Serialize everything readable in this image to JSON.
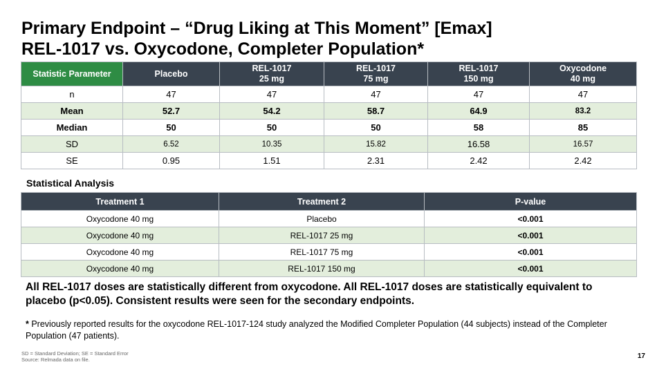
{
  "title": {
    "line1": "Primary Endpoint – “Drug Liking at This Moment” [Emax]",
    "line2": "REL-1017 vs. Oxycodone, Completer Population*"
  },
  "stats_table": {
    "headers": [
      {
        "line1": "Statistic Parameter",
        "line2": ""
      },
      {
        "line1": "Placebo",
        "line2": ""
      },
      {
        "line1": "REL-1017",
        "line2": "25 mg"
      },
      {
        "line1": "REL-1017",
        "line2": "75 mg"
      },
      {
        "line1": "REL-1017",
        "line2": "150 mg"
      },
      {
        "line1": "Oxycodone",
        "line2": "40 mg"
      }
    ],
    "rows": [
      {
        "label": "n",
        "values": [
          "47",
          "47",
          "47",
          "47",
          "47"
        ]
      },
      {
        "label": "Mean",
        "values": [
          "52.7",
          "54.2",
          "58.7",
          "64.9",
          "83.2"
        ]
      },
      {
        "label": "Median",
        "values": [
          "50",
          "50",
          "50",
          "58",
          "85"
        ]
      },
      {
        "label": "SD",
        "values": [
          "6.52",
          "10.35",
          "15.82",
          "16.58",
          "16.57"
        ]
      },
      {
        "label": "SE",
        "values": [
          "0.95",
          "1.51",
          "2.31",
          "2.42",
          "2.42"
        ]
      }
    ]
  },
  "analysis": {
    "label": "Statistical Analysis",
    "headers": [
      "Treatment 1",
      "Treatment 2",
      "P-value"
    ],
    "rows": [
      [
        "Oxycodone 40 mg",
        "Placebo",
        "<0.001"
      ],
      [
        "Oxycodone 40 mg",
        "REL-1017 25 mg",
        "<0.001"
      ],
      [
        "Oxycodone 40 mg",
        "REL-1017 75 mg",
        "<0.001"
      ],
      [
        "Oxycodone 40 mg",
        "REL-1017 150 mg",
        "<0.001"
      ]
    ]
  },
  "conclusion": "All REL-1017 doses are statistically different from oxycodone. All REL-1017 doses are statistically equivalent to placebo (p<0.05). Consistent results were seen for the secondary endpoints.",
  "footnote": {
    "star": "*",
    "text": " Previously reported results for the oxycodone REL-1017-124 study analyzed the Modified Completer Population (44 subjects) instead of the Completer Population (47 patients)."
  },
  "source": {
    "line1": "SD = Standard Deviation; SE = Standard Error",
    "line2": "Source: Relmada data on file."
  },
  "page_number": "17",
  "colors": {
    "header_dark": "#39434f",
    "header_green": "#2e8c44",
    "row_shade": "#e3eedc"
  }
}
